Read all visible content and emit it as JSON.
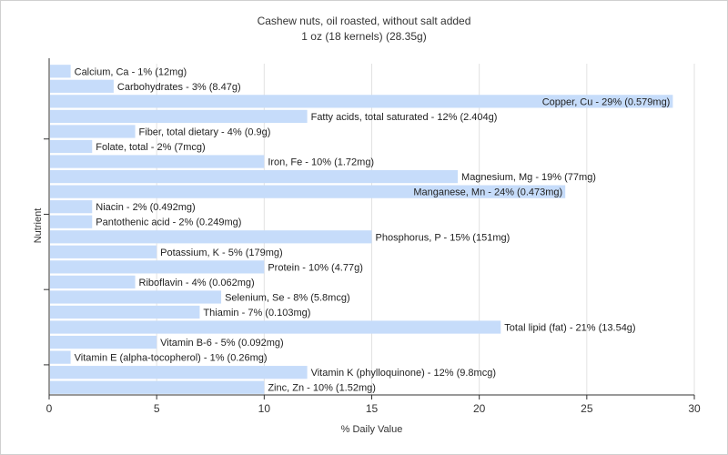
{
  "chart_data": {
    "type": "bar",
    "orientation": "horizontal",
    "title": "Cashew nuts, oil roasted, without salt added",
    "subtitle": "1 oz (18 kernels) (28.35g)",
    "xlabel": "% Daily Value",
    "ylabel": "Nutrient",
    "xlim": [
      0,
      30
    ],
    "xticks": [
      0,
      5,
      10,
      15,
      20,
      25,
      30
    ],
    "grid": true,
    "bar_color": "#c6dcfa",
    "categories": [
      "Calcium, Ca",
      "Carbohydrates",
      "Copper, Cu",
      "Fatty acids, total saturated",
      "Fiber, total dietary",
      "Folate, total",
      "Iron, Fe",
      "Magnesium, Mg",
      "Manganese, Mn",
      "Niacin",
      "Pantothenic acid",
      "Phosphorus, P",
      "Potassium, K",
      "Protein",
      "Riboflavin",
      "Selenium, Se",
      "Thiamin",
      "Total lipid (fat)",
      "Vitamin B-6",
      "Vitamin E (alpha-tocopherol)",
      "Vitamin K (phylloquinone)",
      "Zinc, Zn"
    ],
    "values": [
      1,
      3,
      29,
      12,
      4,
      2,
      10,
      19,
      24,
      2,
      2,
      15,
      5,
      10,
      4,
      8,
      7,
      21,
      5,
      1,
      12,
      10
    ],
    "bar_labels": [
      "Calcium, Ca - 1% (12mg)",
      "Carbohydrates - 3% (8.47g)",
      "Copper, Cu - 29% (0.579mg)",
      "Fatty acids, total saturated - 12% (2.404g)",
      "Fiber, total dietary - 4% (0.9g)",
      "Folate, total - 2% (7mcg)",
      "Iron, Fe - 10% (1.72mg)",
      "Magnesium, Mg - 19% (77mg)",
      "Manganese, Mn - 24% (0.473mg)",
      "Niacin - 2% (0.492mg)",
      "Pantothenic acid - 2% (0.249mg)",
      "Phosphorus, P - 15% (151mg)",
      "Potassium, K - 5% (179mg)",
      "Protein - 10% (4.77g)",
      "Riboflavin - 4% (0.062mg)",
      "Selenium, Se - 8% (5.8mcg)",
      "Thiamin - 7% (0.103mg)",
      "Total lipid (fat) - 21% (13.54g)",
      "Vitamin B-6 - 5% (0.092mg)",
      "Vitamin E (alpha-tocopherol) - 1% (0.26mg)",
      "Vitamin K (phylloquinone) - 12% (9.8mcg)",
      "Zinc, Zn - 10% (1.52mg)"
    ]
  }
}
